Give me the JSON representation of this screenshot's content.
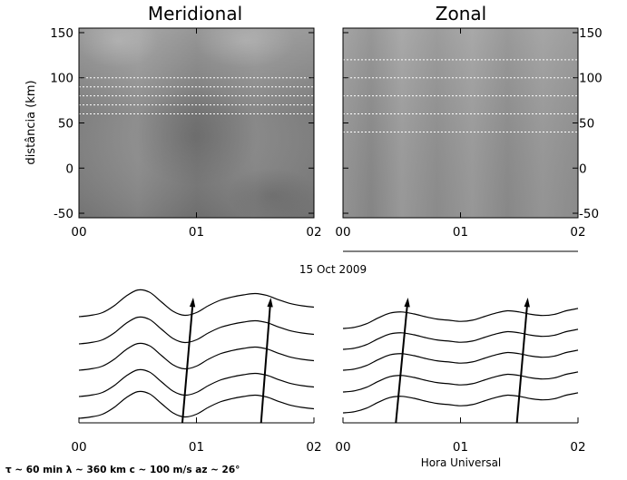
{
  "figure": {
    "date_label": "15 Oct 2009",
    "footer": "τ ~ 60 min   λ ~ 360 km   c ~ 100 m/s   az ~ 26°",
    "xlabel_bottom": "Hora Universal"
  },
  "chart_data": [
    {
      "type": "heatmap",
      "title": "Meridional",
      "ylabel": "distância (km)",
      "xlim": [
        0,
        2
      ],
      "ylim": [
        -55,
        155
      ],
      "x_ticks": [
        "00",
        "01",
        "02"
      ],
      "y_ticks": [
        -50,
        0,
        50,
        100,
        150
      ],
      "colormap": "grayscale",
      "reference_lines_km": [
        60,
        70,
        80,
        90,
        100
      ]
    },
    {
      "type": "heatmap",
      "title": "Zonal",
      "xlim": [
        0,
        2
      ],
      "ylim": [
        -55,
        155
      ],
      "x_ticks": [
        "00",
        "01",
        "02"
      ],
      "y_ticks": [
        -50,
        0,
        50,
        100,
        150
      ],
      "colormap": "grayscale",
      "reference_lines_km": [
        40,
        60,
        80,
        100,
        120
      ]
    },
    {
      "type": "line",
      "panel": "Meridional keograms",
      "xlim": [
        0,
        2
      ],
      "x_ticks": [
        "00",
        "01",
        "02"
      ],
      "x": [
        0.0,
        0.1,
        0.2,
        0.3,
        0.4,
        0.5,
        0.6,
        0.7,
        0.8,
        0.9,
        1.0,
        1.1,
        1.2,
        1.3,
        1.4,
        1.5,
        1.6,
        1.7,
        1.8,
        1.9,
        2.0
      ],
      "series": [
        {
          "values": [
            0.0,
            0.05,
            0.15,
            0.4,
            0.75,
            0.98,
            0.9,
            0.55,
            0.2,
            0.05,
            0.15,
            0.4,
            0.6,
            0.72,
            0.8,
            0.85,
            0.78,
            0.62,
            0.48,
            0.4,
            0.35
          ]
        },
        {
          "values": [
            0.0,
            0.05,
            0.15,
            0.4,
            0.75,
            0.98,
            0.9,
            0.55,
            0.2,
            0.05,
            0.15,
            0.4,
            0.6,
            0.72,
            0.8,
            0.85,
            0.78,
            0.62,
            0.48,
            0.4,
            0.35
          ]
        },
        {
          "values": [
            0.0,
            0.05,
            0.15,
            0.4,
            0.75,
            0.98,
            0.9,
            0.55,
            0.2,
            0.05,
            0.15,
            0.4,
            0.6,
            0.72,
            0.8,
            0.85,
            0.78,
            0.62,
            0.48,
            0.4,
            0.35
          ]
        },
        {
          "values": [
            0.0,
            0.05,
            0.15,
            0.4,
            0.75,
            0.98,
            0.9,
            0.55,
            0.2,
            0.05,
            0.15,
            0.4,
            0.6,
            0.72,
            0.8,
            0.85,
            0.78,
            0.62,
            0.48,
            0.4,
            0.35
          ]
        },
        {
          "values": [
            0.0,
            0.05,
            0.15,
            0.4,
            0.75,
            0.98,
            0.9,
            0.55,
            0.2,
            0.05,
            0.15,
            0.4,
            0.6,
            0.72,
            0.8,
            0.85,
            0.78,
            0.62,
            0.48,
            0.4,
            0.35
          ]
        }
      ],
      "phase_fronts": [
        {
          "x_start": 0.88,
          "x_end": 0.97
        },
        {
          "x_start": 1.55,
          "x_end": 1.63
        }
      ]
    },
    {
      "type": "line",
      "panel": "Zonal keograms",
      "xlim": [
        0,
        2
      ],
      "x_ticks": [
        "00",
        "01",
        "02"
      ],
      "xlabel": "Hora Universal",
      "x": [
        0.0,
        0.1,
        0.2,
        0.3,
        0.4,
        0.5,
        0.6,
        0.7,
        0.8,
        0.9,
        1.0,
        1.1,
        1.2,
        1.3,
        1.4,
        1.5,
        1.6,
        1.7,
        1.8,
        1.9,
        2.0
      ],
      "series": [
        {
          "values": [
            0.0,
            0.05,
            0.2,
            0.45,
            0.65,
            0.7,
            0.62,
            0.5,
            0.4,
            0.35,
            0.3,
            0.35,
            0.5,
            0.65,
            0.75,
            0.7,
            0.6,
            0.55,
            0.6,
            0.75,
            0.85
          ]
        },
        {
          "values": [
            0.0,
            0.05,
            0.2,
            0.45,
            0.65,
            0.7,
            0.62,
            0.5,
            0.4,
            0.35,
            0.3,
            0.35,
            0.5,
            0.65,
            0.75,
            0.7,
            0.6,
            0.55,
            0.6,
            0.75,
            0.85
          ]
        },
        {
          "values": [
            0.0,
            0.05,
            0.2,
            0.45,
            0.65,
            0.7,
            0.62,
            0.5,
            0.4,
            0.35,
            0.3,
            0.35,
            0.5,
            0.65,
            0.75,
            0.7,
            0.6,
            0.55,
            0.6,
            0.75,
            0.85
          ]
        },
        {
          "values": [
            0.0,
            0.05,
            0.2,
            0.45,
            0.65,
            0.7,
            0.62,
            0.5,
            0.4,
            0.35,
            0.3,
            0.35,
            0.5,
            0.65,
            0.75,
            0.7,
            0.6,
            0.55,
            0.6,
            0.75,
            0.85
          ]
        },
        {
          "values": [
            0.0,
            0.05,
            0.2,
            0.45,
            0.65,
            0.7,
            0.62,
            0.5,
            0.4,
            0.35,
            0.3,
            0.35,
            0.5,
            0.65,
            0.75,
            0.7,
            0.6,
            0.55,
            0.6,
            0.75,
            0.85
          ]
        }
      ],
      "phase_fronts": [
        {
          "x_start": 0.45,
          "x_end": 0.55
        },
        {
          "x_start": 1.48,
          "x_end": 1.57
        }
      ]
    }
  ]
}
